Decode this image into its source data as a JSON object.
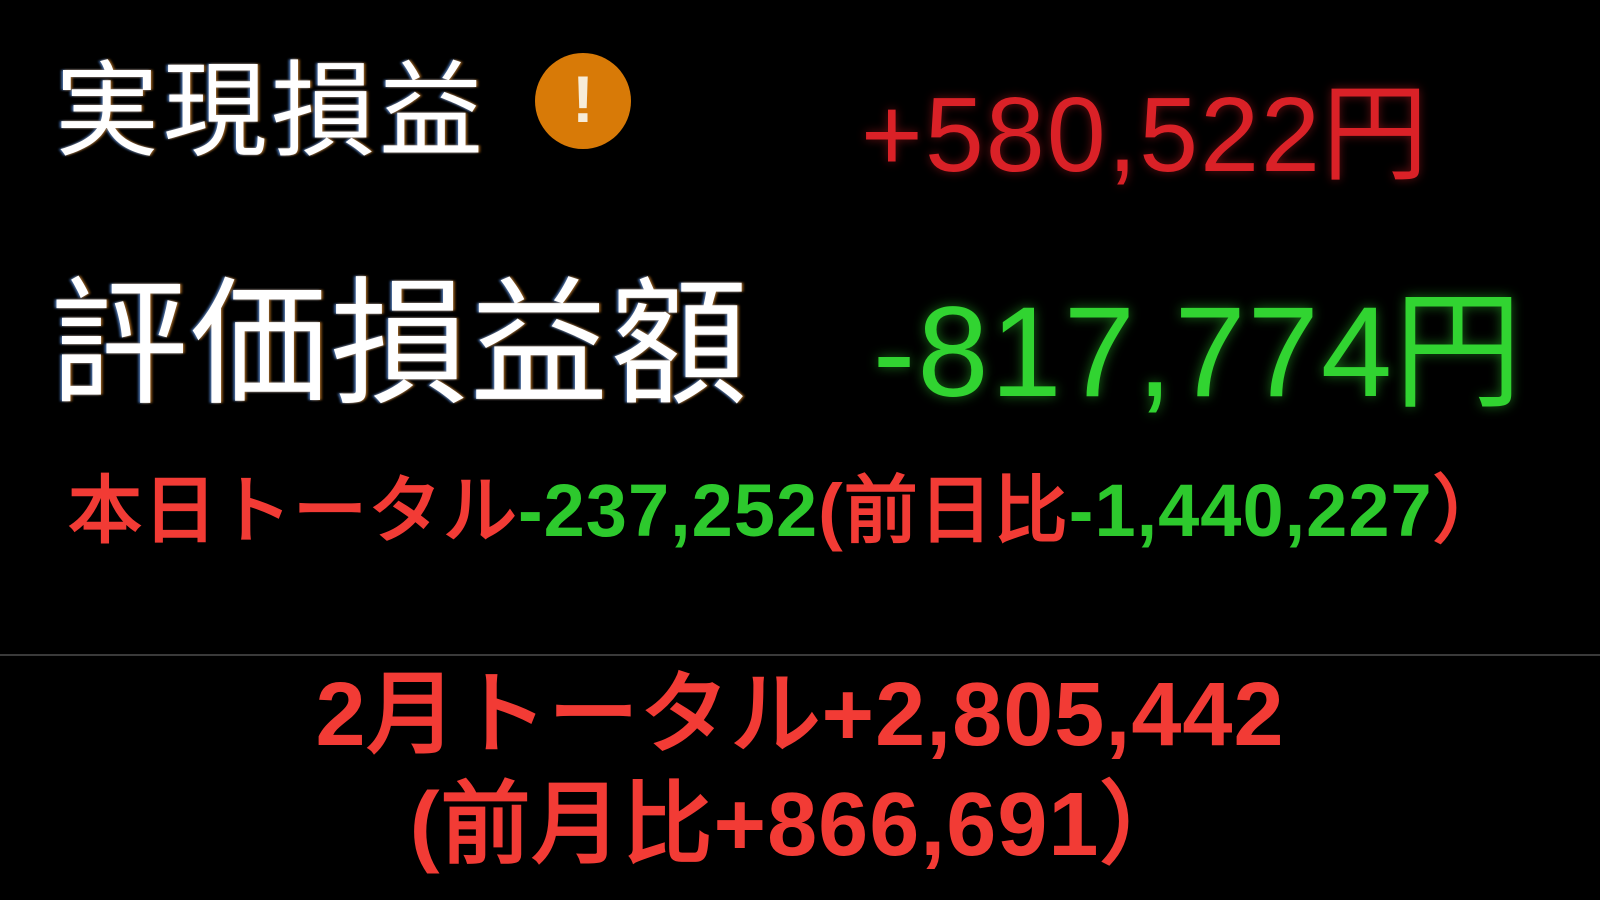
{
  "pnl_panel": {
    "realized": {
      "label": "実現損益",
      "value": "+580,522円"
    },
    "valuation": {
      "label": "評価損益額",
      "value": "-817,774円"
    },
    "today": {
      "label": "本日トータル",
      "value": "-237,252",
      "paren_open": "(",
      "prev_day_label": "前日比",
      "prev_day_value": "-1,440,227",
      "paren_close": "）"
    }
  },
  "monthly_panel": {
    "month_total": {
      "label": "2月トータル",
      "value": "+2,805,442"
    },
    "prev_month": {
      "paren_open": "(",
      "label": "前月比",
      "value": "+866,691",
      "paren_close": "）"
    }
  },
  "icons": {
    "warning": "!"
  },
  "colors": {
    "background": "#000000",
    "label_white": "#ffffff",
    "realized_red": "#da2127",
    "valuation_green": "#31d431",
    "accent_red": "#f23b35",
    "accent_green": "#2dc92d",
    "icon_orange": "#d87a07",
    "divider_gray": "#3a3a3a"
  }
}
